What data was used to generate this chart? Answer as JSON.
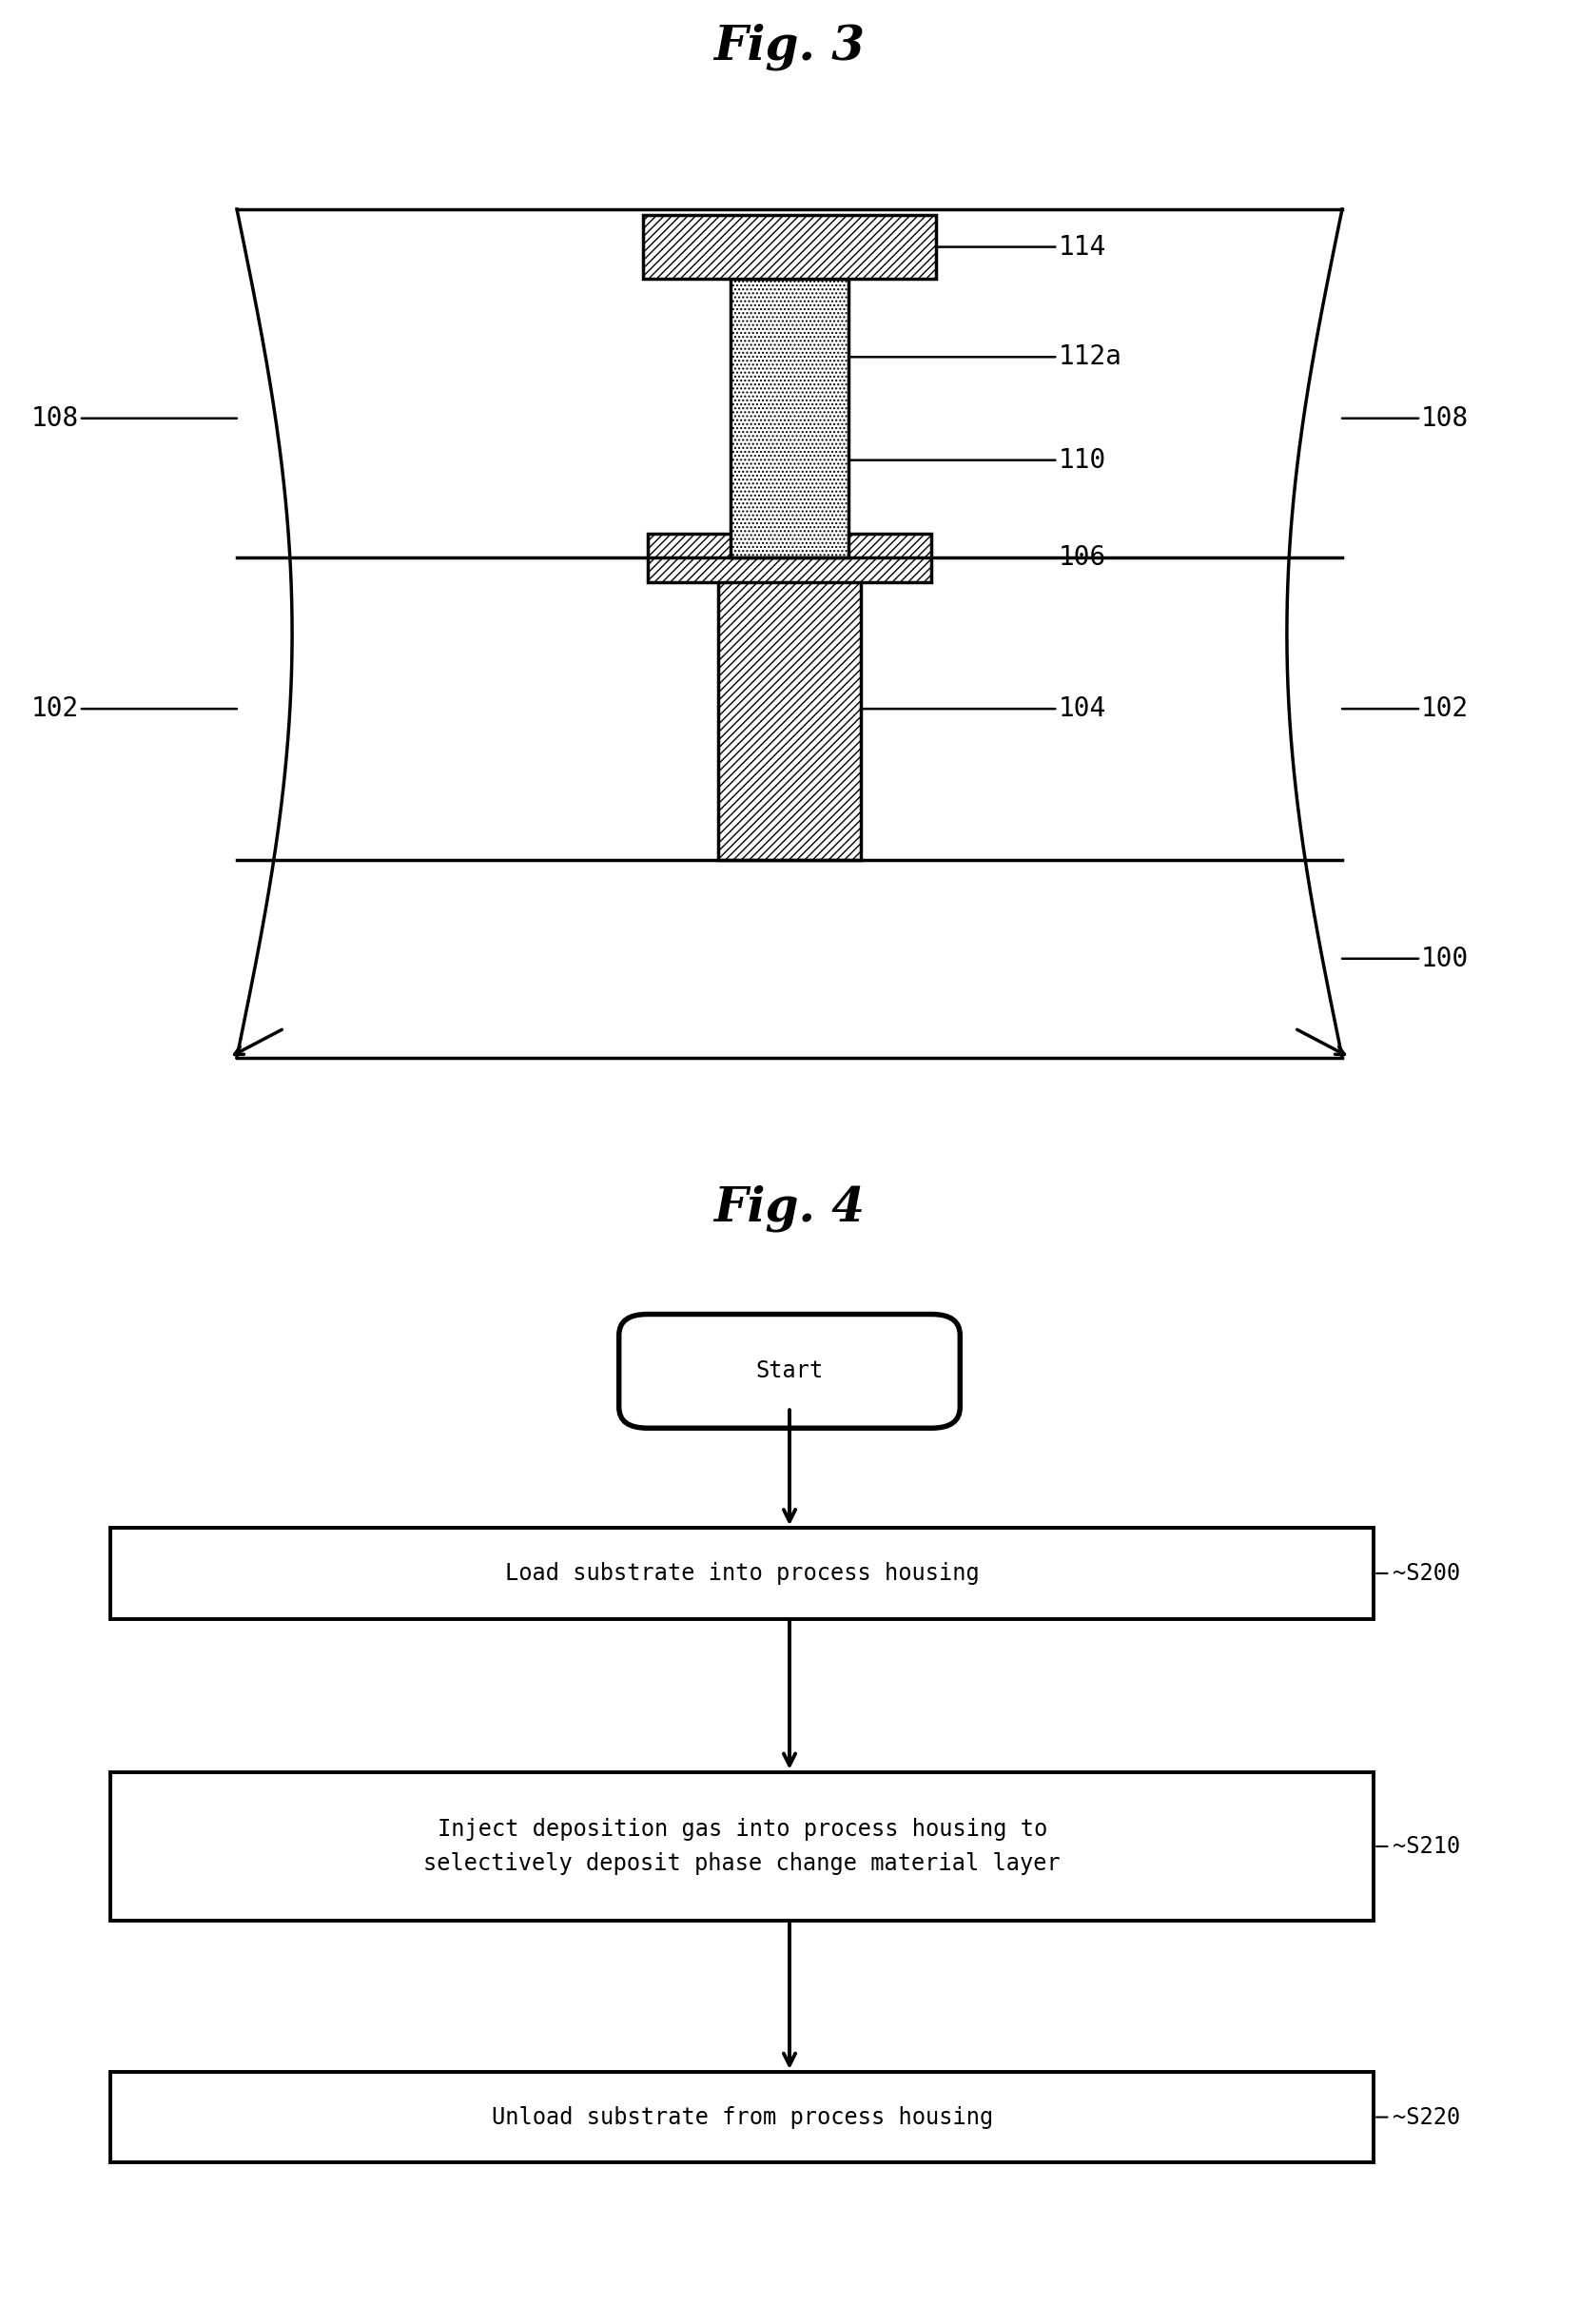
{
  "fig3_title": "Fig. 3",
  "fig4_title": "Fig. 4",
  "bg_color": "#ffffff",
  "flowchart": {
    "start_text": "Start",
    "steps": [
      {
        "text": "Load substrate into process housing",
        "label": "S200"
      },
      {
        "text": "Inject deposition gas into process housing to\nselectively deposit phase change material layer",
        "label": "S210"
      },
      {
        "text": "Unload substrate from process housing",
        "label": "S220"
      }
    ]
  }
}
